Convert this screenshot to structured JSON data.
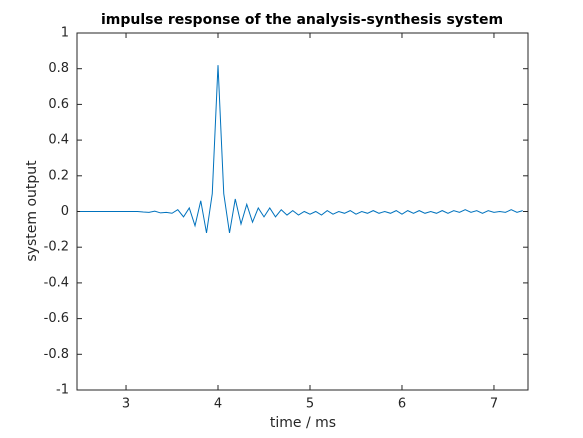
{
  "chart_data": {
    "type": "line",
    "title": "impulse response of the analysis-synthesis system",
    "xlabel": "time / ms",
    "ylabel": "system output",
    "x": [
      2.5,
      2.5625,
      2.625,
      2.6875,
      2.75,
      2.8125,
      2.875,
      2.9375,
      3,
      3.0625,
      3.125,
      3.1875,
      3.25,
      3.3125,
      3.375,
      3.4375,
      3.5,
      3.5625,
      3.625,
      3.6875,
      3.75,
      3.8125,
      3.875,
      3.9375,
      4,
      4.0625,
      4.125,
      4.1875,
      4.25,
      4.3125,
      4.375,
      4.4375,
      4.5,
      4.5625,
      4.625,
      4.6875,
      4.75,
      4.8125,
      4.875,
      4.9375,
      5,
      5.0625,
      5.125,
      5.1875,
      5.25,
      5.3125,
      5.375,
      5.4375,
      5.5,
      5.5625,
      5.625,
      5.6875,
      5.75,
      5.8125,
      5.875,
      5.9375,
      6,
      6.0625,
      6.125,
      6.1875,
      6.25,
      6.3125,
      6.375,
      6.4375,
      6.5,
      6.5625,
      6.625,
      6.6875,
      6.75,
      6.8125,
      6.875,
      6.9375,
      7,
      7.0625,
      7.125,
      7.1875,
      7.25,
      7.3125
    ],
    "series": [
      {
        "color": "#0072bd",
        "values": [
          0,
          0,
          0,
          0,
          0,
          0,
          0,
          0,
          0,
          0,
          0,
          -0.003,
          -0.005,
          0.002,
          -0.008,
          -0.005,
          -0.01,
          0.01,
          -0.03,
          0.02,
          -0.08,
          0.06,
          -0.12,
          0.1,
          0.82,
          0.1,
          -0.12,
          0.07,
          -0.07,
          0.04,
          -0.06,
          0.02,
          -0.03,
          0.02,
          -0.03,
          0.01,
          -0.02,
          0.005,
          -0.02,
          0.0,
          -0.015,
          0.0,
          -0.02,
          0.005,
          -0.015,
          0.0,
          -0.01,
          0.005,
          -0.015,
          0.0,
          -0.01,
          0.005,
          -0.01,
          0.0,
          -0.01,
          0.005,
          -0.015,
          0.005,
          -0.01,
          0.005,
          -0.01,
          0.0,
          -0.01,
          0.005,
          -0.01,
          0.005,
          -0.005,
          0.01,
          -0.005,
          0.005,
          -0.01,
          0.005,
          -0.005,
          0.0,
          -0.005,
          0.01,
          -0.005,
          0.005
        ]
      }
    ],
    "xlim": [
      2.467,
      7.37
    ],
    "xticks": [
      3,
      4,
      5,
      6,
      7
    ],
    "ylim": [
      -1,
      1
    ],
    "yticks": [
      -1,
      -0.8,
      -0.6,
      -0.4,
      -0.2,
      0,
      0.2,
      0.4,
      0.6,
      0.8,
      1
    ],
    "grid": false
  }
}
